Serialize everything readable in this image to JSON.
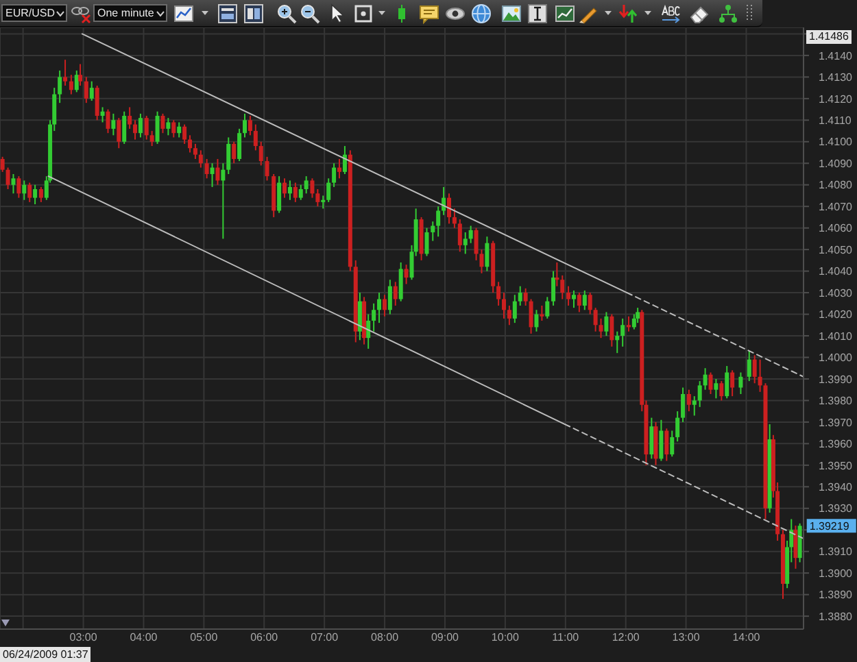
{
  "chart_data": {
    "type": "candlestick",
    "title": "EUR/USD",
    "subtitle": "One minute",
    "x": [
      1.66,
      1.75,
      1.84,
      1.93,
      2.02,
      2.11,
      2.2,
      2.3,
      2.39,
      2.45,
      2.52,
      2.61,
      2.7,
      2.8,
      2.89,
      2.95,
      3.05,
      3.14,
      3.23,
      3.32,
      3.41,
      3.5,
      3.59,
      3.68,
      3.77,
      3.86,
      3.95,
      4.05,
      4.14,
      4.23,
      4.32,
      4.41,
      4.5,
      4.59,
      4.68,
      4.77,
      4.86,
      4.95,
      5.05,
      5.14,
      5.23,
      5.32,
      5.41,
      5.5,
      5.59,
      5.68,
      5.77,
      5.86,
      5.95,
      6.05,
      6.16,
      6.25,
      6.34,
      6.43,
      6.52,
      6.61,
      6.7,
      6.8,
      6.89,
      6.98,
      7.07,
      7.16,
      7.25,
      7.34,
      7.43,
      7.52,
      7.59,
      7.66,
      7.73,
      7.82,
      7.91,
      8.0,
      8.09,
      8.18,
      8.27,
      8.36,
      8.45,
      8.52,
      8.61,
      8.7,
      8.8,
      8.89,
      8.98,
      9.07,
      9.16,
      9.25,
      9.34,
      9.43,
      9.52,
      9.61,
      9.7,
      9.8,
      9.89,
      9.98,
      10.07,
      10.16,
      10.25,
      10.34,
      10.43,
      10.52,
      10.61,
      10.7,
      10.8,
      10.86,
      10.95,
      11.05,
      11.14,
      11.23,
      11.32,
      11.41,
      11.5,
      11.59,
      11.68,
      11.77,
      11.86,
      11.95,
      12.05,
      12.14,
      12.2,
      12.27,
      12.34,
      12.43,
      12.5,
      12.59,
      12.68,
      12.77,
      12.86,
      12.95,
      13.05,
      13.14,
      13.23,
      13.32,
      13.41,
      13.5,
      13.59,
      13.68,
      13.77,
      13.91,
      14.05,
      14.14,
      14.23,
      14.32,
      14.39,
      14.45,
      14.52,
      14.61,
      14.68,
      14.75,
      14.82,
      14.89
    ],
    "ohlc": [
      [
        1.4092,
        1.4093,
        1.4086,
        1.4087
      ],
      [
        1.4087,
        1.4088,
        1.4078,
        1.408
      ],
      [
        1.408,
        1.4085,
        1.4076,
        1.4083
      ],
      [
        1.4083,
        1.4084,
        1.4074,
        1.4076
      ],
      [
        1.4076,
        1.4082,
        1.4073,
        1.408
      ],
      [
        1.408,
        1.4081,
        1.4072,
        1.4074
      ],
      [
        1.4074,
        1.408,
        1.4071,
        1.4078
      ],
      [
        1.4078,
        1.4079,
        1.4072,
        1.4074
      ],
      [
        1.4074,
        1.4084,
        1.4073,
        1.4082
      ],
      [
        1.4082,
        1.411,
        1.4081,
        1.4108
      ],
      [
        1.4108,
        1.4125,
        1.4105,
        1.4122
      ],
      [
        1.4122,
        1.4133,
        1.4118,
        1.413
      ],
      [
        1.413,
        1.4138,
        1.4126,
        1.4128
      ],
      [
        1.4128,
        1.4131,
        1.4122,
        1.4124
      ],
      [
        1.4124,
        1.4133,
        1.4123,
        1.4131
      ],
      [
        1.4131,
        1.4136,
        1.4126,
        1.4128
      ],
      [
        1.4128,
        1.413,
        1.4118,
        1.412
      ],
      [
        1.412,
        1.4128,
        1.4119,
        1.4125
      ],
      [
        1.4125,
        1.4126,
        1.411,
        1.4112
      ],
      [
        1.4112,
        1.4116,
        1.4109,
        1.4114
      ],
      [
        1.4114,
        1.4115,
        1.4104,
        1.4106
      ],
      [
        1.4106,
        1.4113,
        1.4103,
        1.411
      ],
      [
        1.411,
        1.4111,
        1.4097,
        1.41
      ],
      [
        1.41,
        1.4114,
        1.4099,
        1.4112
      ],
      [
        1.4112,
        1.4116,
        1.4106,
        1.4108
      ],
      [
        1.4108,
        1.411,
        1.4101,
        1.4104
      ],
      [
        1.4104,
        1.4113,
        1.4102,
        1.4111
      ],
      [
        1.4111,
        1.4112,
        1.4101,
        1.4103
      ],
      [
        1.4103,
        1.4105,
        1.4098,
        1.41
      ],
      [
        1.41,
        1.4114,
        1.4099,
        1.4112
      ],
      [
        1.4112,
        1.4113,
        1.4104,
        1.4106
      ],
      [
        1.4106,
        1.4111,
        1.4103,
        1.4109
      ],
      [
        1.4109,
        1.411,
        1.4102,
        1.4104
      ],
      [
        1.4104,
        1.4109,
        1.4102,
        1.4107
      ],
      [
        1.4107,
        1.4108,
        1.4099,
        1.4101
      ],
      [
        1.4101,
        1.4103,
        1.4095,
        1.4097
      ],
      [
        1.4097,
        1.4099,
        1.4092,
        1.4094
      ],
      [
        1.4094,
        1.4096,
        1.4088,
        1.409
      ],
      [
        1.409,
        1.4092,
        1.4083,
        1.4085
      ],
      [
        1.4085,
        1.409,
        1.4079,
        1.4088
      ],
      [
        1.4088,
        1.4092,
        1.408,
        1.4082
      ],
      [
        1.4082,
        1.409,
        1.4055,
        1.4087
      ],
      [
        1.4087,
        1.4102,
        1.4085,
        1.4099
      ],
      [
        1.4099,
        1.41,
        1.409,
        1.4092
      ],
      [
        1.4092,
        1.4106,
        1.4091,
        1.4104
      ],
      [
        1.4104,
        1.4113,
        1.4102,
        1.411
      ],
      [
        1.411,
        1.4112,
        1.4103,
        1.4105
      ],
      [
        1.4105,
        1.4108,
        1.4096,
        1.4098
      ],
      [
        1.4098,
        1.41,
        1.4089,
        1.4091
      ],
      [
        1.4091,
        1.4093,
        1.4082,
        1.4084
      ],
      [
        1.4084,
        1.4085,
        1.4065,
        1.4068
      ],
      [
        1.4068,
        1.4084,
        1.4067,
        1.4081
      ],
      [
        1.4081,
        1.4083,
        1.4074,
        1.4076
      ],
      [
        1.4076,
        1.4082,
        1.4073,
        1.4079
      ],
      [
        1.4079,
        1.4081,
        1.4072,
        1.4074
      ],
      [
        1.4074,
        1.408,
        1.4073,
        1.4078
      ],
      [
        1.4078,
        1.4084,
        1.4076,
        1.4082
      ],
      [
        1.4082,
        1.4083,
        1.4074,
        1.4076
      ],
      [
        1.4076,
        1.4078,
        1.407,
        1.4072
      ],
      [
        1.4072,
        1.4075,
        1.4069,
        1.4073
      ],
      [
        1.4073,
        1.4083,
        1.4072,
        1.4081
      ],
      [
        1.4081,
        1.409,
        1.4079,
        1.4088
      ],
      [
        1.4088,
        1.4092,
        1.4083,
        1.4086
      ],
      [
        1.4086,
        1.4098,
        1.4085,
        1.4094
      ],
      [
        1.4094,
        1.4096,
        1.404,
        1.4042
      ],
      [
        1.4042,
        1.4045,
        1.4007,
        1.4012
      ],
      [
        1.4012,
        1.403,
        1.4008,
        1.4026
      ],
      [
        1.4026,
        1.4028,
        1.4006,
        1.4009
      ],
      [
        1.4009,
        1.402,
        1.4004,
        1.4017
      ],
      [
        1.4017,
        1.4025,
        1.4012,
        1.4022
      ],
      [
        1.4022,
        1.403,
        1.4016,
        1.4027
      ],
      [
        1.4027,
        1.4029,
        1.4019,
        1.4022
      ],
      [
        1.4022,
        1.4036,
        1.402,
        1.4033
      ],
      [
        1.4033,
        1.4035,
        1.4024,
        1.4027
      ],
      [
        1.4027,
        1.4044,
        1.4026,
        1.4041
      ],
      [
        1.4041,
        1.4043,
        1.4034,
        1.4037
      ],
      [
        1.4037,
        1.4052,
        1.4036,
        1.4049
      ],
      [
        1.4049,
        1.4069,
        1.4047,
        1.4064
      ],
      [
        1.4064,
        1.4065,
        1.4045,
        1.4048
      ],
      [
        1.4048,
        1.406,
        1.4047,
        1.4058
      ],
      [
        1.4058,
        1.4063,
        1.4054,
        1.4061
      ],
      [
        1.4061,
        1.407,
        1.4056,
        1.4068
      ],
      [
        1.4068,
        1.4079,
        1.4066,
        1.4074
      ],
      [
        1.4074,
        1.4076,
        1.4062,
        1.4065
      ],
      [
        1.4065,
        1.4069,
        1.406,
        1.4062
      ],
      [
        1.4062,
        1.4064,
        1.4049,
        1.4052
      ],
      [
        1.4052,
        1.4058,
        1.4048,
        1.4055
      ],
      [
        1.4055,
        1.4061,
        1.4053,
        1.4059
      ],
      [
        1.4059,
        1.406,
        1.4045,
        1.4048
      ],
      [
        1.4048,
        1.405,
        1.4039,
        1.4042
      ],
      [
        1.4042,
        1.4056,
        1.404,
        1.4053
      ],
      [
        1.4053,
        1.4054,
        1.403,
        1.4033
      ],
      [
        1.4033,
        1.4035,
        1.4024,
        1.4027
      ],
      [
        1.4027,
        1.403,
        1.4018,
        1.4022
      ],
      [
        1.4022,
        1.4024,
        1.4015,
        1.4018
      ],
      [
        1.4018,
        1.4029,
        1.4016,
        1.4026
      ],
      [
        1.4026,
        1.4033,
        1.4024,
        1.403
      ],
      [
        1.403,
        1.4032,
        1.4024,
        1.4026
      ],
      [
        1.4026,
        1.4027,
        1.4011,
        1.4014
      ],
      [
        1.4014,
        1.4022,
        1.4012,
        1.402
      ],
      [
        1.402,
        1.4024,
        1.4017,
        1.4019
      ],
      [
        1.4019,
        1.4028,
        1.4018,
        1.4026
      ],
      [
        1.4026,
        1.404,
        1.4024,
        1.4037
      ],
      [
        1.4037,
        1.4044,
        1.4033,
        1.4036
      ],
      [
        1.4036,
        1.4038,
        1.4027,
        1.403
      ],
      [
        1.403,
        1.4033,
        1.4024,
        1.4027
      ],
      [
        1.4027,
        1.4031,
        1.4023,
        1.4029
      ],
      [
        1.4029,
        1.403,
        1.4021,
        1.4024
      ],
      [
        1.4024,
        1.4031,
        1.4022,
        1.4029
      ],
      [
        1.4029,
        1.403,
        1.402,
        1.4022
      ],
      [
        1.4022,
        1.4023,
        1.4012,
        1.4015
      ],
      [
        1.4015,
        1.4018,
        1.4009,
        1.4012
      ],
      [
        1.4012,
        1.4021,
        1.401,
        1.4019
      ],
      [
        1.4019,
        1.402,
        1.4005,
        1.4008
      ],
      [
        1.4008,
        1.4012,
        1.4002,
        1.401
      ],
      [
        1.401,
        1.4018,
        1.4005,
        1.4015
      ],
      [
        1.4015,
        1.4019,
        1.4012,
        1.4014
      ],
      [
        1.4014,
        1.402,
        1.4013,
        1.4018
      ],
      [
        1.4018,
        1.4023,
        1.4016,
        1.4021
      ],
      [
        1.4021,
        1.4022,
        1.3975,
        1.3978
      ],
      [
        1.3978,
        1.398,
        1.395,
        1.3955
      ],
      [
        1.3955,
        1.3972,
        1.3953,
        1.3968
      ],
      [
        1.3968,
        1.397,
        1.395,
        1.3953
      ],
      [
        1.3953,
        1.3971,
        1.3952,
        1.3966
      ],
      [
        1.3966,
        1.3967,
        1.3952,
        1.3955
      ],
      [
        1.3955,
        1.3966,
        1.3954,
        1.3963
      ],
      [
        1.3963,
        1.3975,
        1.3961,
        1.3972
      ],
      [
        1.3972,
        1.3986,
        1.397,
        1.3983
      ],
      [
        1.3983,
        1.3985,
        1.3975,
        1.3978
      ],
      [
        1.3978,
        1.3982,
        1.3973,
        1.398
      ],
      [
        1.398,
        1.3989,
        1.3977,
        1.3987
      ],
      [
        1.3987,
        1.3995,
        1.3985,
        1.3992
      ],
      [
        1.3992,
        1.3993,
        1.3983,
        1.3985
      ],
      [
        1.3985,
        1.399,
        1.3981,
        1.3988
      ],
      [
        1.3988,
        1.3989,
        1.398,
        1.3982
      ],
      [
        1.3982,
        1.3996,
        1.3981,
        1.3993
      ],
      [
        1.3993,
        1.3994,
        1.3982,
        1.3986
      ],
      [
        1.3986,
        1.3993,
        1.3983,
        1.3991
      ],
      [
        1.3991,
        1.4003,
        1.3989,
        1.3999
      ],
      [
        1.3999,
        1.4001,
        1.3988,
        1.3991
      ],
      [
        1.3991,
        1.3999,
        1.3984,
        1.3987
      ],
      [
        1.3987,
        1.3988,
        1.3925,
        1.393
      ],
      [
        1.393,
        1.3969,
        1.3928,
        1.3962
      ],
      [
        1.3962,
        1.3964,
        1.3935,
        1.3938
      ],
      [
        1.3938,
        1.3942,
        1.3915,
        1.3918
      ],
      [
        1.3918,
        1.392,
        1.3888,
        1.3895
      ],
      [
        1.3895,
        1.3915,
        1.3893,
        1.3912
      ],
      [
        1.3912,
        1.3925,
        1.3905,
        1.392
      ],
      [
        1.392,
        1.3922,
        1.3902,
        1.3907
      ],
      [
        1.3907,
        1.3923,
        1.3905,
        1.39219
      ]
    ],
    "colors": [
      "#cc2020",
      "#cc2020",
      "#33cc33",
      "#cc2020",
      "#33cc33",
      "#cc2020",
      "#33cc33",
      "#cc2020",
      "#33cc33",
      "#33cc33",
      "#33cc33",
      "#33cc33",
      "#cc2020",
      "#cc2020",
      "#33cc33",
      "#cc2020",
      "#cc2020",
      "#33cc33",
      "#cc2020",
      "#33cc33",
      "#cc2020",
      "#33cc33",
      "#cc2020",
      "#33cc33",
      "#cc2020",
      "#cc2020",
      "#33cc33",
      "#cc2020",
      "#cc2020",
      "#33cc33",
      "#cc2020",
      "#33cc33",
      "#cc2020",
      "#33cc33",
      "#cc2020",
      "#cc2020",
      "#cc2020",
      "#cc2020",
      "#cc2020",
      "#33cc33",
      "#cc2020",
      "#33cc33",
      "#33cc33",
      "#cc2020",
      "#33cc33",
      "#33cc33",
      "#cc2020",
      "#cc2020",
      "#cc2020",
      "#cc2020",
      "#cc2020",
      "#33cc33",
      "#cc2020",
      "#33cc33",
      "#cc2020",
      "#33cc33",
      "#33cc33",
      "#cc2020",
      "#cc2020",
      "#33cc33",
      "#33cc33",
      "#33cc33",
      "#cc2020",
      "#33cc33",
      "#cc2020",
      "#cc2020",
      "#33cc33",
      "#cc2020",
      "#33cc33",
      "#33cc33",
      "#33cc33",
      "#cc2020",
      "#33cc33",
      "#cc2020",
      "#33cc33",
      "#cc2020",
      "#33cc33",
      "#33cc33",
      "#cc2020",
      "#33cc33",
      "#33cc33",
      "#33cc33",
      "#33cc33",
      "#cc2020",
      "#cc2020",
      "#cc2020",
      "#33cc33",
      "#33cc33",
      "#cc2020",
      "#cc2020",
      "#33cc33",
      "#cc2020",
      "#cc2020",
      "#cc2020",
      "#cc2020",
      "#33cc33",
      "#33cc33",
      "#cc2020",
      "#cc2020",
      "#33cc33",
      "#cc2020",
      "#33cc33",
      "#33cc33",
      "#cc2020",
      "#cc2020",
      "#cc2020",
      "#33cc33",
      "#cc2020",
      "#33cc33",
      "#cc2020",
      "#cc2020",
      "#cc2020",
      "#33cc33",
      "#cc2020",
      "#33cc33",
      "#33cc33",
      "#cc2020",
      "#33cc33",
      "#33cc33",
      "#cc2020",
      "#cc2020",
      "#33cc33",
      "#cc2020",
      "#33cc33",
      "#cc2020",
      "#33cc33",
      "#33cc33",
      "#33cc33",
      "#cc2020",
      "#33cc33",
      "#33cc33",
      "#33cc33",
      "#cc2020",
      "#33cc33",
      "#cc2020",
      "#33cc33",
      "#cc2020",
      "#33cc33",
      "#33cc33",
      "#cc2020",
      "#cc2020",
      "#cc2020",
      "#33cc33",
      "#cc2020",
      "#cc2020",
      "#cc2020",
      "#33cc33",
      "#33cc33",
      "#cc2020",
      "#33cc33"
    ],
    "series": [
      {
        "type": "line",
        "x": [
          2.98,
          12.02
        ],
        "values": [
          1.415,
          1.403
        ],
        "color": "#bdbdbd",
        "line_style": "solid"
      },
      {
        "type": "line",
        "x": [
          12.02,
          14.95
        ],
        "values": [
          1.403,
          1.3991
        ],
        "color": "#bdbdbd",
        "line_style": "dashed"
      },
      {
        "type": "line",
        "x": [
          2.42,
          10.99
        ],
        "values": [
          1.4084,
          1.3969
        ],
        "color": "#bdbdbd",
        "line_style": "solid"
      },
      {
        "type": "line",
        "x": [
          10.99,
          14.95
        ],
        "values": [
          1.3969,
          1.3916
        ],
        "color": "#bdbdbd",
        "line_style": "dashed"
      }
    ],
    "xlim": [
      1.617,
      14.95
    ],
    "xticks": [
      {
        "value": 2,
        "label": null
      },
      {
        "value": 3,
        "label": "03:00"
      },
      {
        "value": 4,
        "label": "04:00"
      },
      {
        "value": 5,
        "label": "05:00"
      },
      {
        "value": 6,
        "label": "06:00"
      },
      {
        "value": 7,
        "label": "07:00"
      },
      {
        "value": 8,
        "label": "08:00"
      },
      {
        "value": 9,
        "label": "09:00"
      },
      {
        "value": 10,
        "label": "10:00"
      },
      {
        "value": 11,
        "label": "11:00"
      },
      {
        "value": 12,
        "label": "12:00"
      },
      {
        "value": 13,
        "label": "13:00"
      },
      {
        "value": 14,
        "label": "14:00"
      }
    ],
    "ylim": [
      1.3874,
      1.4153
    ],
    "yticks": [
      {
        "value": 1.388,
        "label": "1.3880"
      },
      {
        "value": 1.389,
        "label": "1.3890"
      },
      {
        "value": 1.39,
        "label": "1.3900"
      },
      {
        "value": 1.391,
        "label": "1.3910"
      },
      {
        "value": 1.392,
        "label": null
      },
      {
        "value": 1.393,
        "label": "1.3930"
      },
      {
        "value": 1.394,
        "label": "1.3940"
      },
      {
        "value": 1.395,
        "label": "1.3950"
      },
      {
        "value": 1.396,
        "label": "1.3960"
      },
      {
        "value": 1.397,
        "label": "1.3970"
      },
      {
        "value": 1.398,
        "label": "1.3980"
      },
      {
        "value": 1.399,
        "label": "1.3990"
      },
      {
        "value": 1.4,
        "label": "1.4000"
      },
      {
        "value": 1.401,
        "label": "1.4010"
      },
      {
        "value": 1.402,
        "label": "1.4020"
      },
      {
        "value": 1.403,
        "label": "1.4030"
      },
      {
        "value": 1.404,
        "label": "1.4040"
      },
      {
        "value": 1.405,
        "label": "1.4050"
      },
      {
        "value": 1.406,
        "label": "1.4060"
      },
      {
        "value": 1.407,
        "label": "1.4070"
      },
      {
        "value": 1.408,
        "label": "1.4080"
      },
      {
        "value": 1.409,
        "label": "1.4090"
      },
      {
        "value": 1.41,
        "label": "1.4100"
      },
      {
        "value": 1.411,
        "label": "1.4110"
      },
      {
        "value": 1.412,
        "label": "1.4120"
      },
      {
        "value": 1.413,
        "label": "1.4130"
      },
      {
        "value": 1.414,
        "label": "1.4140"
      },
      {
        "value": 1.415,
        "label": null
      }
    ],
    "grid": true,
    "annotations": [
      "06/24/2009 01:37",
      "1.41486",
      {
        "text": "1.39219",
        "x": 14.89,
        "y": 1.39219
      }
    ]
  }
}
